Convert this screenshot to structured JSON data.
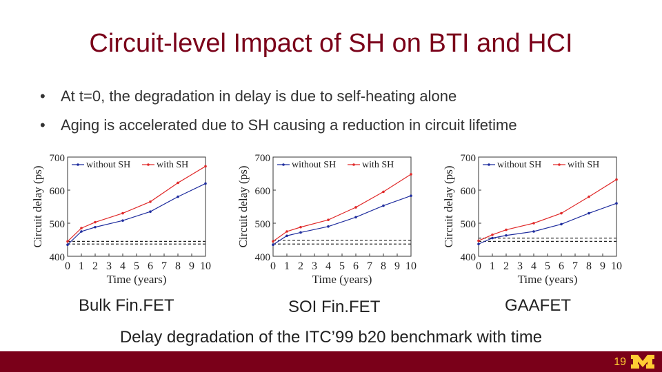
{
  "slide": {
    "title": "Circuit-level Impact of SH on BTI and HCI",
    "bullets": [
      "At t=0, the degradation in delay is due to self-heating alone",
      "Aging is accelerated due to SH causing a reduction in circuit lifetime"
    ],
    "chart_labels": [
      "Bulk Fin.FET",
      "SOI Fin.FET",
      "GAAFET"
    ],
    "caption": "Delay degradation of the ITC’99 b20 benchmark with time",
    "page_number": "19",
    "colors": {
      "title": "#7a0019",
      "footer": "#7a0019",
      "logo": "#ffcc33",
      "without_sh": "#1f2d9e",
      "with_sh": "#e02a2a"
    }
  },
  "chart_data": [
    {
      "type": "line",
      "xlabel": "Time (years)",
      "ylabel": "Circuit delay (ps)",
      "xlim": [
        0,
        10
      ],
      "ylim": [
        400,
        700
      ],
      "xticks": [
        0,
        1,
        2,
        3,
        4,
        5,
        6,
        7,
        8,
        9,
        10
      ],
      "yticks": [
        400,
        500,
        600,
        700
      ],
      "legend_position": "top",
      "series": [
        {
          "name": "without SH",
          "x": [
            0,
            1,
            2,
            4,
            6,
            8,
            10
          ],
          "y": [
            435,
            475,
            488,
            508,
            535,
            580,
            620
          ]
        },
        {
          "name": "with SH",
          "x": [
            0,
            1,
            2,
            4,
            6,
            8,
            10
          ],
          "y": [
            445,
            485,
            503,
            530,
            565,
            622,
            672
          ]
        }
      ],
      "reference_lines": [
        445,
        437
      ]
    },
    {
      "type": "line",
      "xlabel": "Time (years)",
      "ylabel": "Circuit delay (ps)",
      "xlim": [
        0,
        10
      ],
      "ylim": [
        400,
        700
      ],
      "xticks": [
        0,
        1,
        2,
        3,
        4,
        5,
        6,
        7,
        8,
        9,
        10
      ],
      "yticks": [
        400,
        500,
        600,
        700
      ],
      "legend_position": "top",
      "series": [
        {
          "name": "without SH",
          "x": [
            0,
            1,
            2,
            4,
            6,
            8,
            10
          ],
          "y": [
            435,
            462,
            472,
            490,
            518,
            553,
            583
          ]
        },
        {
          "name": "with SH",
          "x": [
            0,
            1,
            2,
            4,
            6,
            8,
            10
          ],
          "y": [
            445,
            475,
            488,
            510,
            548,
            595,
            648
          ]
        }
      ],
      "reference_lines": [
        448,
        437
      ]
    },
    {
      "type": "line",
      "xlabel": "Time (years)",
      "ylabel": "Circuit delay (ps)",
      "xlim": [
        0,
        10
      ],
      "ylim": [
        400,
        700
      ],
      "xticks": [
        0,
        1,
        2,
        3,
        4,
        5,
        6,
        7,
        8,
        9,
        10
      ],
      "yticks": [
        400,
        500,
        600,
        700
      ],
      "legend_position": "top",
      "series": [
        {
          "name": "without SH",
          "x": [
            0,
            1,
            2,
            4,
            6,
            8,
            10
          ],
          "y": [
            437,
            455,
            463,
            475,
            497,
            530,
            560
          ]
        },
        {
          "name": "with SH",
          "x": [
            0,
            1,
            2,
            4,
            6,
            8,
            10
          ],
          "y": [
            447,
            465,
            480,
            500,
            530,
            580,
            632
          ]
        }
      ],
      "reference_lines": [
        455,
        445
      ]
    }
  ]
}
